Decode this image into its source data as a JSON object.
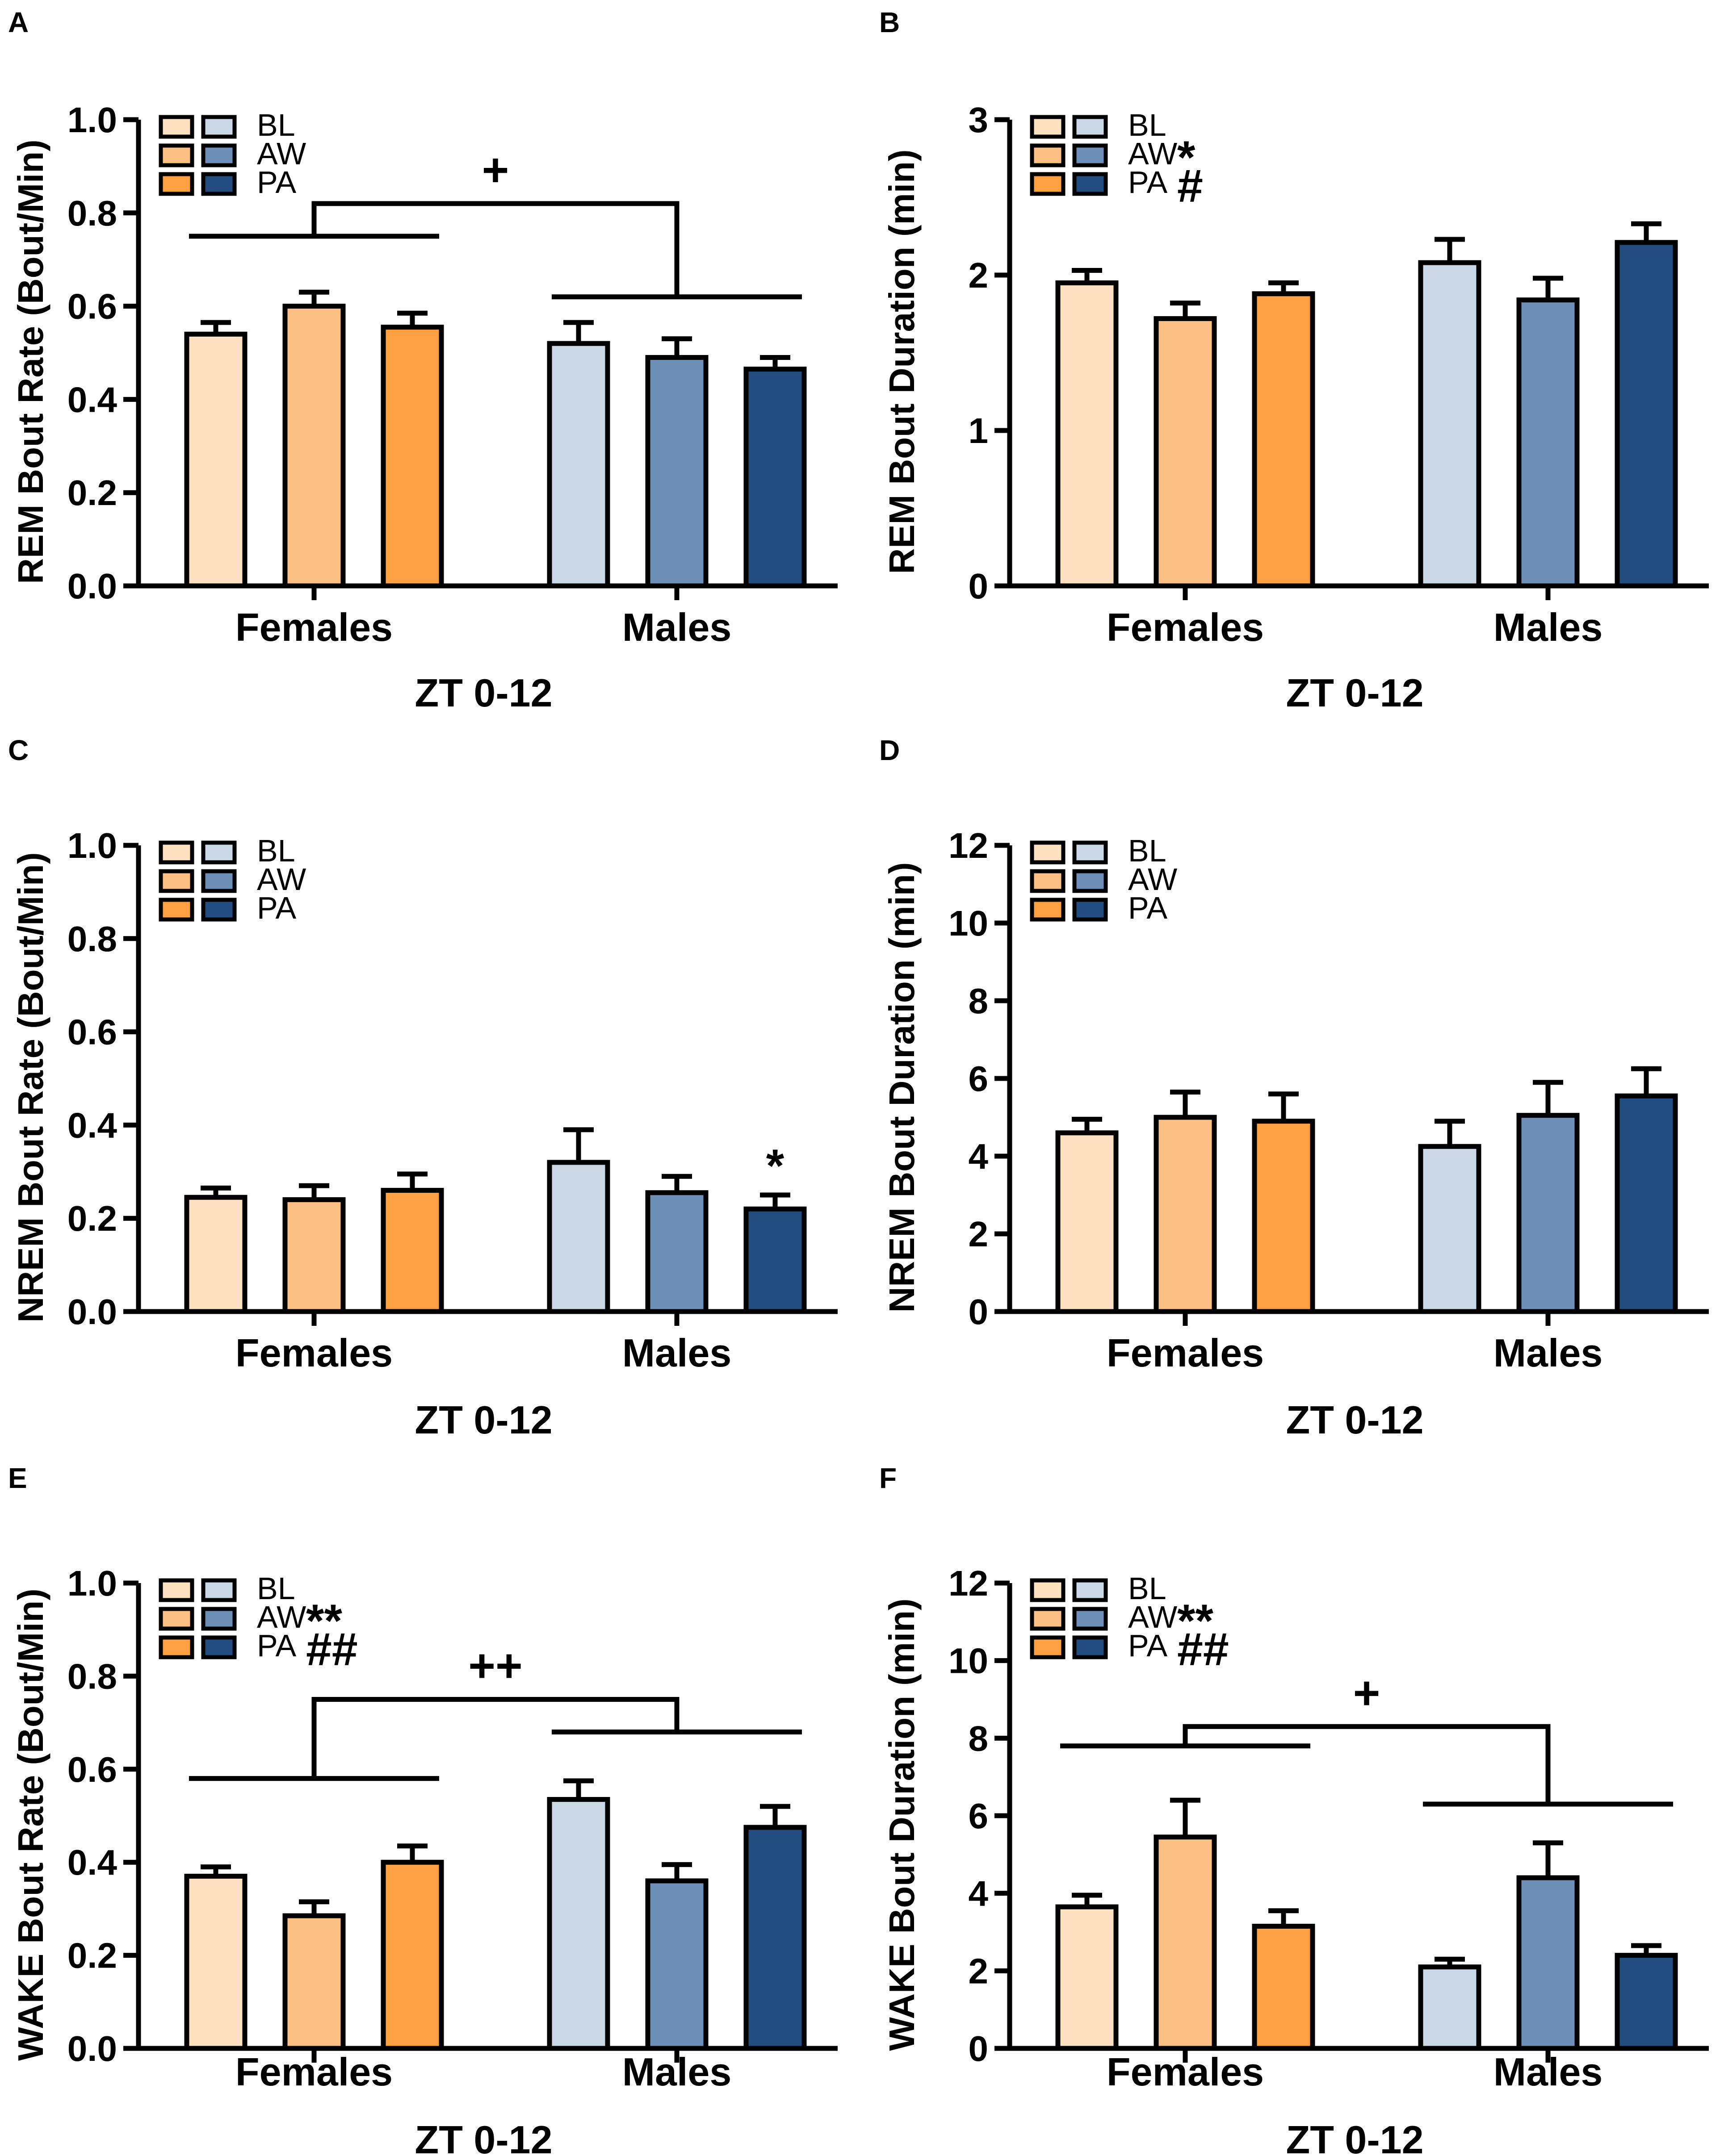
{
  "palette": {
    "BL_f": "#FDE1C1",
    "AW_f": "#FDC084",
    "PA_f": "#FCA042",
    "BL_m": "#CAD8E5",
    "AW_m": "#6E8FB7",
    "PA_m": "#234C80",
    "ink": "#000000"
  },
  "chart_data": [
    {
      "panel": "A",
      "type": "bar",
      "ylabel": "REM Bout Rate (Bout/Min)",
      "xlabel": "ZT 0-12",
      "ylim": [
        0,
        1.0
      ],
      "yticks": [
        0.0,
        0.2,
        0.4,
        0.6,
        0.8,
        1.0
      ],
      "ytick_labels": [
        "0.0",
        "0.2",
        "0.4",
        "0.6",
        "0.8",
        "1.0"
      ],
      "categories": [
        "Females",
        "Males"
      ],
      "series": [
        {
          "name": "BL",
          "values": [
            0.54,
            0.52
          ],
          "errors": [
            0.025,
            0.045
          ]
        },
        {
          "name": "AW",
          "values": [
            0.6,
            0.49
          ],
          "errors": [
            0.03,
            0.04
          ]
        },
        {
          "name": "PA",
          "values": [
            0.555,
            0.465
          ],
          "errors": [
            0.03,
            0.025
          ]
        }
      ],
      "legend": {
        "labels": [
          "BL",
          "AW",
          "PA"
        ],
        "marks": [
          "",
          "",
          ""
        ]
      },
      "annotations": [
        {
          "kind": "sex-bracket",
          "symbol": "+"
        }
      ]
    },
    {
      "panel": "B",
      "type": "bar",
      "ylabel": "REM Bout Duration (min)",
      "xlabel": "ZT 0-12",
      "ylim": [
        0,
        3
      ],
      "yticks": [
        0,
        1,
        2,
        3
      ],
      "ytick_labels": [
        "0",
        "1",
        "2",
        "3"
      ],
      "categories": [
        "Females",
        "Males"
      ],
      "series": [
        {
          "name": "BL",
          "values": [
            1.95,
            2.08
          ],
          "errors": [
            0.08,
            0.15
          ]
        },
        {
          "name": "AW",
          "values": [
            1.72,
            1.84
          ],
          "errors": [
            0.1,
            0.14
          ]
        },
        {
          "name": "PA",
          "values": [
            1.88,
            2.21
          ],
          "errors": [
            0.07,
            0.12
          ]
        }
      ],
      "legend": {
        "labels": [
          "BL",
          "AW",
          "PA"
        ],
        "marks": [
          "",
          "*",
          "#"
        ]
      },
      "annotations": []
    },
    {
      "panel": "C",
      "type": "bar",
      "ylabel": "NREM Bout Rate (Bout/Min)",
      "xlabel": "ZT 0-12",
      "ylim": [
        0,
        1.0
      ],
      "yticks": [
        0.0,
        0.2,
        0.4,
        0.6,
        0.8,
        1.0
      ],
      "ytick_labels": [
        "0.0",
        "0.2",
        "0.4",
        "0.6",
        "0.8",
        "1.0"
      ],
      "categories": [
        "Females",
        "Males"
      ],
      "series": [
        {
          "name": "BL",
          "values": [
            0.245,
            0.32
          ],
          "errors": [
            0.02,
            0.07
          ]
        },
        {
          "name": "AW",
          "values": [
            0.24,
            0.255
          ],
          "errors": [
            0.03,
            0.035
          ]
        },
        {
          "name": "PA",
          "values": [
            0.26,
            0.22
          ],
          "errors": [
            0.035,
            0.03
          ]
        }
      ],
      "legend": {
        "labels": [
          "BL",
          "AW",
          "PA"
        ],
        "marks": [
          "",
          "",
          ""
        ]
      },
      "annotations": [
        {
          "kind": "bar-mark",
          "symbol": "*",
          "group": 1,
          "series": 2
        }
      ]
    },
    {
      "panel": "D",
      "type": "bar",
      "ylabel": "NREM Bout Duration (min)",
      "xlabel": "ZT 0-12",
      "ylim": [
        0,
        12
      ],
      "yticks": [
        0,
        2,
        4,
        6,
        8,
        10,
        12
      ],
      "ytick_labels": [
        "0",
        "2",
        "4",
        "6",
        "8",
        "10",
        "12"
      ],
      "categories": [
        "Females",
        "Males"
      ],
      "series": [
        {
          "name": "BL",
          "values": [
            4.6,
            4.25
          ],
          "errors": [
            0.35,
            0.65
          ]
        },
        {
          "name": "AW",
          "values": [
            5.0,
            5.05
          ],
          "errors": [
            0.65,
            0.85
          ]
        },
        {
          "name": "PA",
          "values": [
            4.9,
            5.55
          ],
          "errors": [
            0.7,
            0.7
          ]
        }
      ],
      "legend": {
        "labels": [
          "BL",
          "AW",
          "PA"
        ],
        "marks": [
          "",
          "",
          ""
        ]
      },
      "annotations": []
    },
    {
      "panel": "E",
      "type": "bar",
      "ylabel": "WAKE Bout Rate (Bout/Min)",
      "xlabel": "ZT 0-12",
      "ylim": [
        0,
        1.0
      ],
      "yticks": [
        0.0,
        0.2,
        0.4,
        0.6,
        0.8,
        1.0
      ],
      "ytick_labels": [
        "0.0",
        "0.2",
        "0.4",
        "0.6",
        "0.8",
        "1.0"
      ],
      "categories": [
        "Females",
        "Males"
      ],
      "series": [
        {
          "name": "BL",
          "values": [
            0.37,
            0.535
          ],
          "errors": [
            0.02,
            0.04
          ]
        },
        {
          "name": "AW",
          "values": [
            0.285,
            0.36
          ],
          "errors": [
            0.03,
            0.035
          ]
        },
        {
          "name": "PA",
          "values": [
            0.4,
            0.475
          ],
          "errors": [
            0.035,
            0.045
          ]
        }
      ],
      "legend": {
        "labels": [
          "BL",
          "AW",
          "PA"
        ],
        "marks": [
          "",
          "**",
          "##"
        ]
      },
      "annotations": [
        {
          "kind": "sex-bracket",
          "symbol": "++"
        }
      ]
    },
    {
      "panel": "F",
      "type": "bar",
      "ylabel": "WAKE Bout Duration (min)",
      "xlabel": "ZT 0-12",
      "ylim": [
        0,
        12
      ],
      "yticks": [
        0,
        2,
        4,
        6,
        8,
        10,
        12
      ],
      "ytick_labels": [
        "0",
        "2",
        "4",
        "6",
        "8",
        "10",
        "12"
      ],
      "categories": [
        "Females",
        "Males"
      ],
      "series": [
        {
          "name": "BL",
          "values": [
            3.65,
            2.1
          ],
          "errors": [
            0.3,
            0.2
          ]
        },
        {
          "name": "AW",
          "values": [
            5.45,
            4.4
          ],
          "errors": [
            0.95,
            0.9
          ]
        },
        {
          "name": "PA",
          "values": [
            3.15,
            2.4
          ],
          "errors": [
            0.4,
            0.25
          ]
        }
      ],
      "legend": {
        "labels": [
          "BL",
          "AW",
          "PA"
        ],
        "marks": [
          "",
          "**",
          "##"
        ]
      },
      "annotations": [
        {
          "kind": "sex-bracket",
          "symbol": "+"
        }
      ]
    }
  ]
}
